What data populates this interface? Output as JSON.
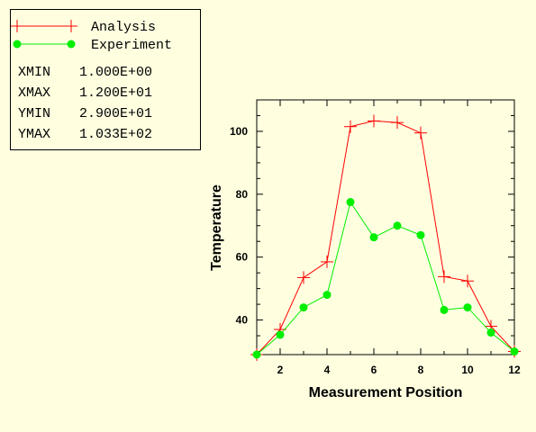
{
  "legend": {
    "entries": [
      {
        "label": "Analysis",
        "color": "#ff0000",
        "marker": "plus"
      },
      {
        "label": "Experiment",
        "color": "#00ee00",
        "marker": "circle"
      }
    ],
    "stats": [
      {
        "key": "XMIN",
        "value": "1.000E+00"
      },
      {
        "key": "XMAX",
        "value": "1.200E+01"
      },
      {
        "key": "YMIN",
        "value": "2.900E+01"
      },
      {
        "key": "YMAX",
        "value": "1.033E+02"
      }
    ]
  },
  "chart_data": {
    "type": "line",
    "xlabel": "Measurement Position",
    "ylabel": "Temperature",
    "xlim": [
      1,
      12
    ],
    "ylim": [
      29,
      110
    ],
    "xticks": [
      2,
      4,
      6,
      8,
      10,
      12
    ],
    "yticks": [
      40,
      60,
      80,
      100
    ],
    "grid": false,
    "legend_position": "top-left, outside plot",
    "series": [
      {
        "name": "Analysis",
        "color": "#ff0000",
        "marker": "plus",
        "x": [
          1,
          2,
          3,
          4,
          5,
          6,
          7,
          8,
          9,
          10,
          11,
          12
        ],
        "y": [
          29,
          37,
          53.5,
          58.5,
          101.5,
          103.3,
          102.8,
          99.5,
          53.8,
          52.4,
          38,
          30
        ]
      },
      {
        "name": "Experiment",
        "color": "#00ee00",
        "marker": "circle",
        "x": [
          1,
          2,
          3,
          4,
          5,
          6,
          7,
          8,
          9,
          10,
          11,
          12
        ],
        "y": [
          29,
          35.3,
          44,
          48,
          77.5,
          66.3,
          70,
          67,
          43.2,
          44,
          36,
          30
        ]
      }
    ]
  }
}
